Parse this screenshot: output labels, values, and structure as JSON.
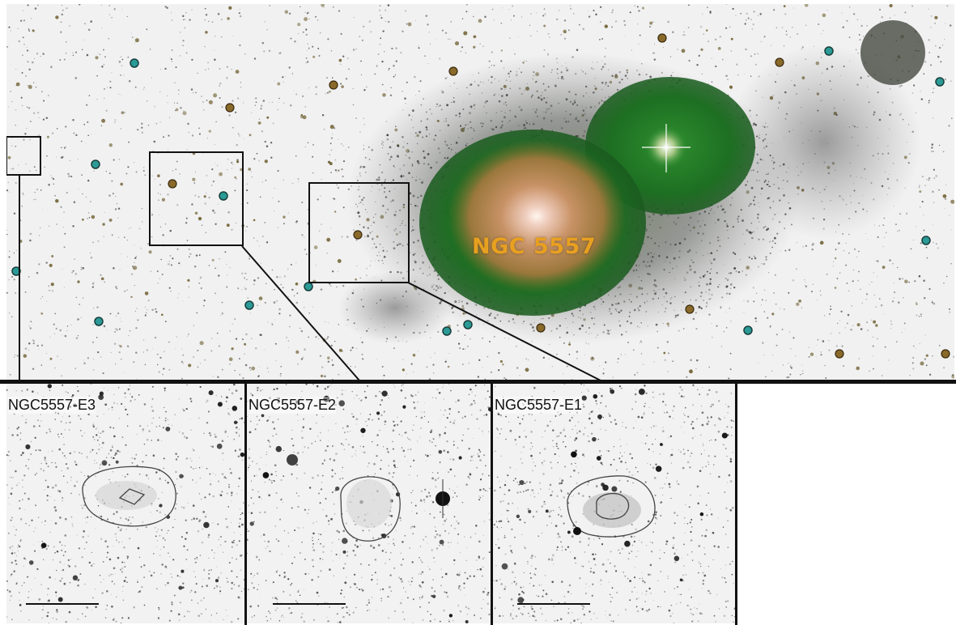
{
  "main_image": {
    "galaxy_label": "NGC 5557",
    "colors": {
      "halo_green": "#1f7a24",
      "core_orange": "#b8783a",
      "bright_core": "#fff4ea",
      "star_cyan": "#2b9a96",
      "label": "#e8a020"
    }
  },
  "insets": [
    {
      "label": "NGC5557-E3",
      "contours": 2,
      "has_scale_bar": true
    },
    {
      "label": "NGC5557-E2",
      "contours": 1,
      "has_scale_bar": true
    },
    {
      "label": "NGC5557-E1",
      "contours": 2,
      "has_scale_bar": true
    }
  ]
}
